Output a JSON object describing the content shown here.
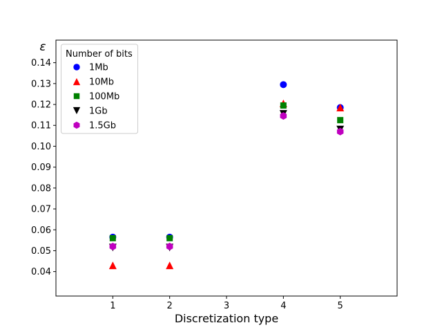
{
  "figure": {
    "background": "#ffffff",
    "spine_color": "#000000",
    "legend_border_color": "#cccccc"
  },
  "chart_data": {
    "type": "scatter",
    "title": "",
    "xlabel": "Discretization type",
    "ylabel": "ε",
    "xlim": [
      0,
      6
    ],
    "ylim": [
      0.0283,
      0.1508
    ],
    "x_ticks": [
      1,
      2,
      3,
      4,
      5
    ],
    "y_ticks": [
      0.04,
      0.05,
      0.06,
      0.07,
      0.08,
      0.09,
      0.1,
      0.11,
      0.12,
      0.13,
      0.14
    ],
    "grid": false,
    "legend": {
      "title": "Number of bits",
      "position": "upper left"
    },
    "x": [
      1,
      2,
      4,
      5
    ],
    "series": [
      {
        "name": "1Mb",
        "marker": "circle",
        "color": "#0000ff",
        "values": [
          0.0565,
          0.0565,
          0.1295,
          0.1185
        ]
      },
      {
        "name": "10Mb",
        "marker": "triangle-up",
        "color": "#ff0000",
        "values": [
          0.043,
          0.043,
          0.1205,
          0.1185
        ]
      },
      {
        "name": "100Mb",
        "marker": "square",
        "color": "#008000",
        "values": [
          0.056,
          0.056,
          0.1195,
          0.1125
        ]
      },
      {
        "name": "1Gb",
        "marker": "triangle-down",
        "color": "#000000",
        "values": [
          0.0515,
          0.0515,
          0.1155,
          0.108
        ]
      },
      {
        "name": "1.5Gb",
        "marker": "hexagon",
        "color": "#bf00bf",
        "values": [
          0.052,
          0.052,
          0.1145,
          0.107
        ]
      }
    ]
  }
}
